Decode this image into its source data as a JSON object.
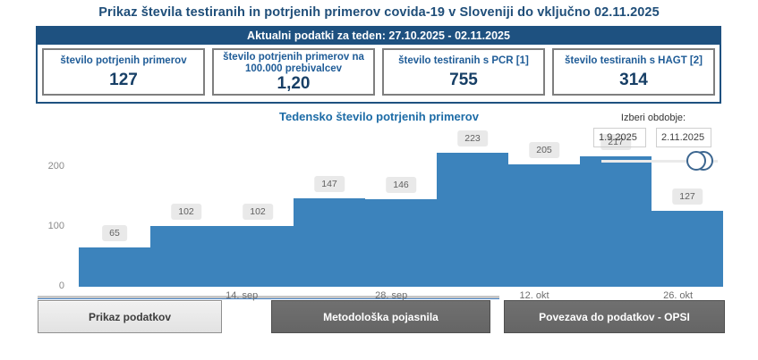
{
  "page": {
    "title": "Prikaz števila testiranih in potrjenih primerov covida-19 v Sloveniji do vključno 02.11.2025"
  },
  "summary": {
    "header": "Aktualni podatki za teden: 27.10.2025 - 02.11.2025",
    "cards": [
      {
        "label": "število potrjenih primerov",
        "value": "127"
      },
      {
        "label": "število potrjenih primerov na 100.000 prebivalcev",
        "value": "1,20"
      },
      {
        "label": "število testiranih s PCR [1]",
        "value": "755"
      },
      {
        "label": "število testiranih s HAGT [2]",
        "value": "314"
      }
    ]
  },
  "period_picker": {
    "label": "Izberi obdobje:",
    "from_value": "1.9.2025",
    "to_value": "2.11.2025"
  },
  "chart_data": {
    "type": "bar",
    "title": "Tedensko število potrjenih primerov",
    "values": [
      65,
      102,
      102,
      147,
      146,
      223,
      205,
      217,
      127
    ],
    "data_labels": [
      "65",
      "102",
      "102",
      "147",
      "146",
      "223",
      "205",
      "217",
      "127"
    ],
    "x_ticks": [
      {
        "label": "14. sep",
        "pos": 0.253
      },
      {
        "label": "28. sep",
        "pos": 0.485
      },
      {
        "label": "12. okt",
        "pos": 0.707
      },
      {
        "label": "26. okt",
        "pos": 0.93
      }
    ],
    "y_ticks": [
      0,
      100,
      200
    ],
    "ylim": [
      0,
      255
    ],
    "grid": false,
    "legend": false,
    "bar_color": "#3c83bc"
  },
  "buttons": {
    "show_data": "Prikaz podatkov",
    "methodology": "Metodološka pojasnila",
    "opsi_link": "Povezava do podatkov - OPSI"
  },
  "colors": {
    "brand_navy": "#1e5180",
    "title_text": "#1f4e79",
    "chart_title_blue": "#1c6ba6",
    "bar_blue": "#3c83bc",
    "card_border_gray": "#7f7f7f"
  }
}
